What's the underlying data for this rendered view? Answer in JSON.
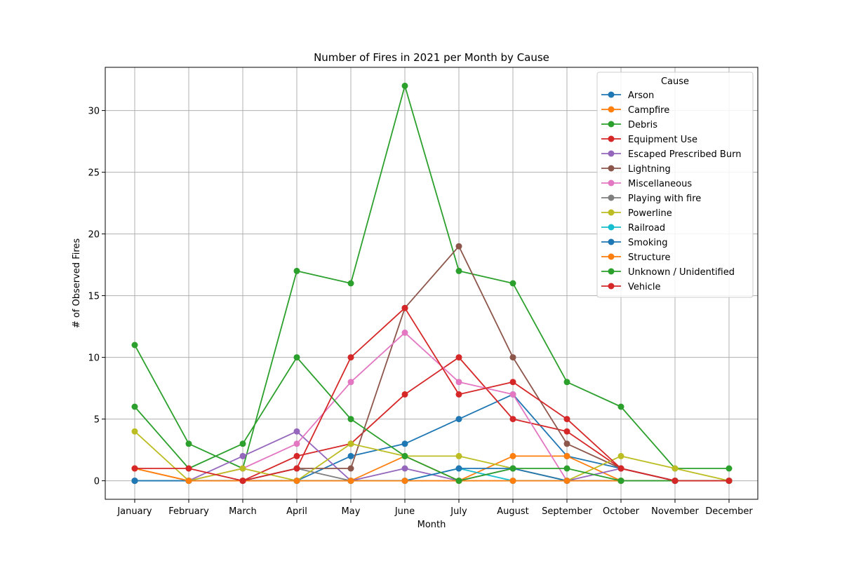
{
  "chart_data": {
    "type": "line",
    "title": "Number of Fires in 2021 per Month by Cause",
    "xlabel": "Month",
    "ylabel": "# of Observed Fires",
    "categories": [
      "January",
      "February",
      "March",
      "April",
      "May",
      "June",
      "July",
      "August",
      "September",
      "October",
      "November",
      "December"
    ],
    "ylim": [
      -1.5,
      33.5
    ],
    "yticks": [
      0,
      5,
      10,
      15,
      20,
      25,
      30
    ],
    "grid": true,
    "legend": {
      "title": "Cause",
      "position": "top-right"
    },
    "series": [
      {
        "name": "Arson",
        "color": "#1f77b4",
        "values": [
          0,
          0,
          0,
          0,
          2,
          3,
          5,
          7,
          2,
          1,
          0,
          0
        ]
      },
      {
        "name": "Campfire",
        "color": "#ff7f0e",
        "values": [
          1,
          0,
          0,
          0,
          0,
          2,
          0,
          2,
          2,
          0,
          0,
          0
        ]
      },
      {
        "name": "Debris",
        "color": "#2ca02c",
        "values": [
          11,
          3,
          1,
          17,
          16,
          32,
          17,
          16,
          8,
          6,
          1,
          1
        ]
      },
      {
        "name": "Equipment Use",
        "color": "#d62728",
        "values": [
          0,
          0,
          0,
          2,
          3,
          7,
          10,
          5,
          4,
          1,
          0,
          0
        ]
      },
      {
        "name": "Escaped Prescribed Burn",
        "color": "#9467bd",
        "values": [
          0,
          0,
          2,
          4,
          0,
          1,
          0,
          1,
          0,
          1,
          0,
          0
        ]
      },
      {
        "name": "Lightning",
        "color": "#8c564b",
        "values": [
          0,
          0,
          0,
          1,
          1,
          14,
          19,
          10,
          3,
          1,
          0,
          0
        ]
      },
      {
        "name": "Miscellaneous",
        "color": "#e377c2",
        "values": [
          0,
          0,
          1,
          3,
          8,
          12,
          8,
          7,
          0,
          0,
          0,
          0
        ]
      },
      {
        "name": "Playing with fire",
        "color": "#7f7f7f",
        "values": [
          0,
          0,
          0,
          1,
          0,
          0,
          0,
          0,
          0,
          0,
          0,
          0
        ]
      },
      {
        "name": "Powerline",
        "color": "#bcbd22",
        "values": [
          4,
          0,
          1,
          0,
          3,
          2,
          2,
          1,
          0,
          2,
          1,
          0
        ]
      },
      {
        "name": "Railroad",
        "color": "#17becf",
        "values": [
          0,
          0,
          0,
          0,
          0,
          0,
          1,
          0,
          0,
          0,
          0,
          0
        ]
      },
      {
        "name": "Smoking",
        "color": "#1f77b4",
        "values": [
          0,
          0,
          0,
          0,
          0,
          0,
          1,
          1,
          0,
          0,
          0,
          0
        ]
      },
      {
        "name": "Structure",
        "color": "#ff7f0e",
        "values": [
          1,
          0,
          0,
          0,
          0,
          0,
          0,
          0,
          0,
          0,
          0,
          0
        ]
      },
      {
        "name": "Unknown / Unidentified",
        "color": "#2ca02c",
        "values": [
          6,
          1,
          3,
          10,
          5,
          2,
          0,
          1,
          1,
          0,
          0,
          0
        ]
      },
      {
        "name": "Vehicle",
        "color": "#d62728",
        "values": [
          1,
          1,
          0,
          1,
          10,
          14,
          7,
          8,
          5,
          1,
          0,
          0
        ]
      }
    ]
  }
}
